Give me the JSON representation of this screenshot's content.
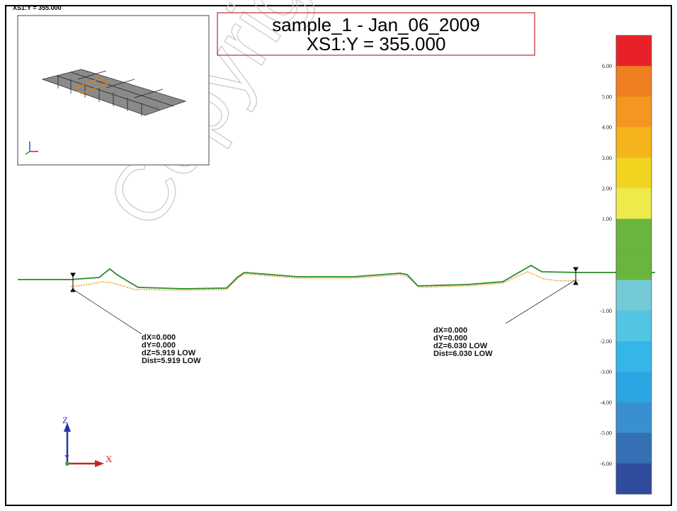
{
  "header": {
    "section_label": "XS1:Y = 355.000"
  },
  "title": {
    "line1": "sample_1 - Jan_06_2009",
    "line2": "XS1:Y = 355.000"
  },
  "watermark": "Copyright",
  "annotations": [
    {
      "lines": [
        "dX=0.000",
        "dY=0.000",
        "dZ=5.919 LOW",
        "Dist=5.919 LOW"
      ]
    },
    {
      "lines": [
        "dX=0.000",
        "dY=0.000",
        "dZ=6.030 LOW",
        "Dist=6.030 LOW"
      ]
    }
  ],
  "axes": {
    "z": "Z",
    "x": "X",
    "y": "Y"
  },
  "color_scale": {
    "labels": [
      "6.00",
      "5.00",
      "4.00",
      "3.00",
      "2.00",
      "1.00",
      "-1.00",
      "-2.00",
      "-3.00",
      "-4.00",
      "-5.00",
      "-6.00"
    ],
    "colors": [
      "#e82128",
      "#f07f22",
      "#f4961f",
      "#f5b41c",
      "#f1d420",
      "#eeea4c",
      "#6ab53e",
      "#6ab53e",
      "#74cbd7",
      "#52c5e3",
      "#35b6e9",
      "#2ba6e3",
      "#3a8fd0",
      "#356fb4",
      "#2e4b9c"
    ]
  }
}
